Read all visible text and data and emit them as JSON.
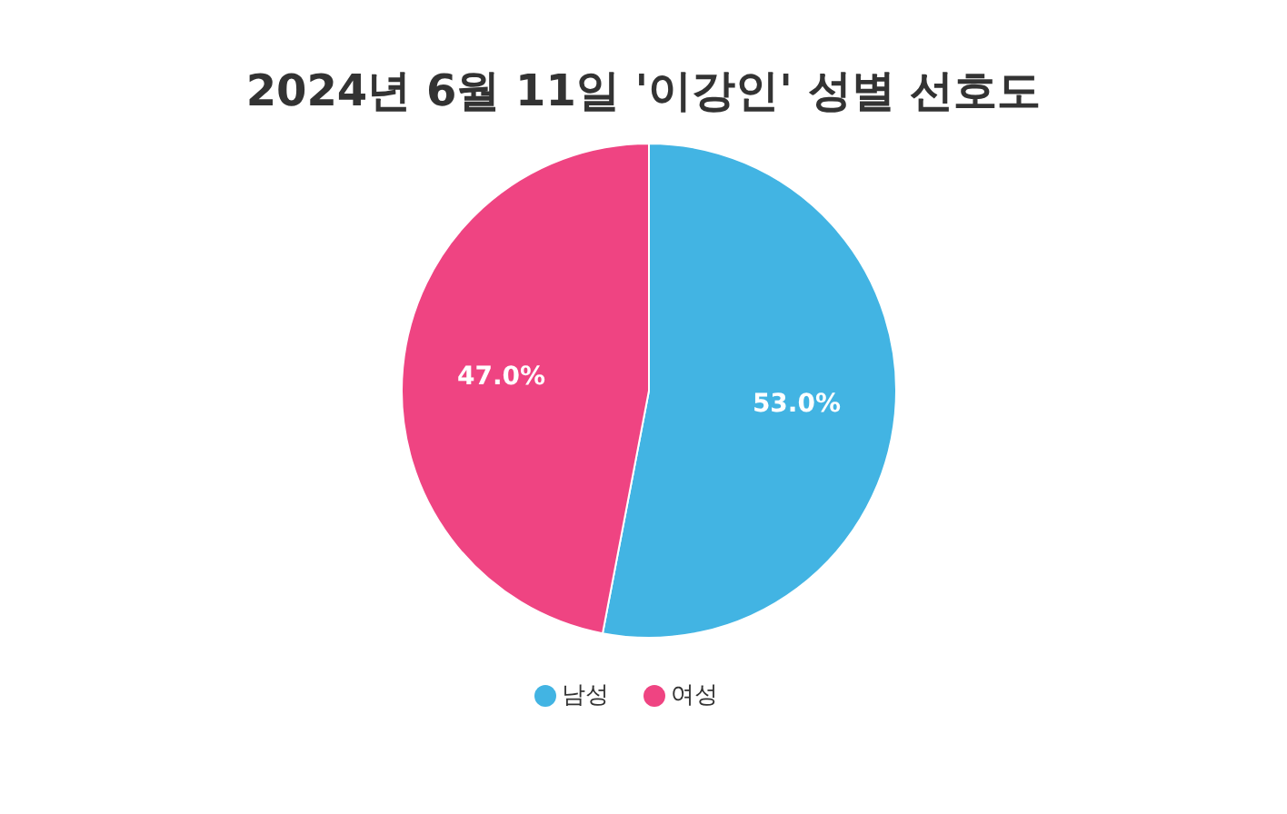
{
  "chart_data": {
    "type": "pie",
    "title": "2024년 6월 11일 '이강인' 성별 선호도",
    "categories": [
      "남성",
      "여성"
    ],
    "values": [
      53.0,
      47.0
    ],
    "colors": [
      "#42b4e3",
      "#ef4482"
    ],
    "value_labels": [
      "53.0%",
      "47.0%"
    ],
    "legend": "bottom"
  }
}
